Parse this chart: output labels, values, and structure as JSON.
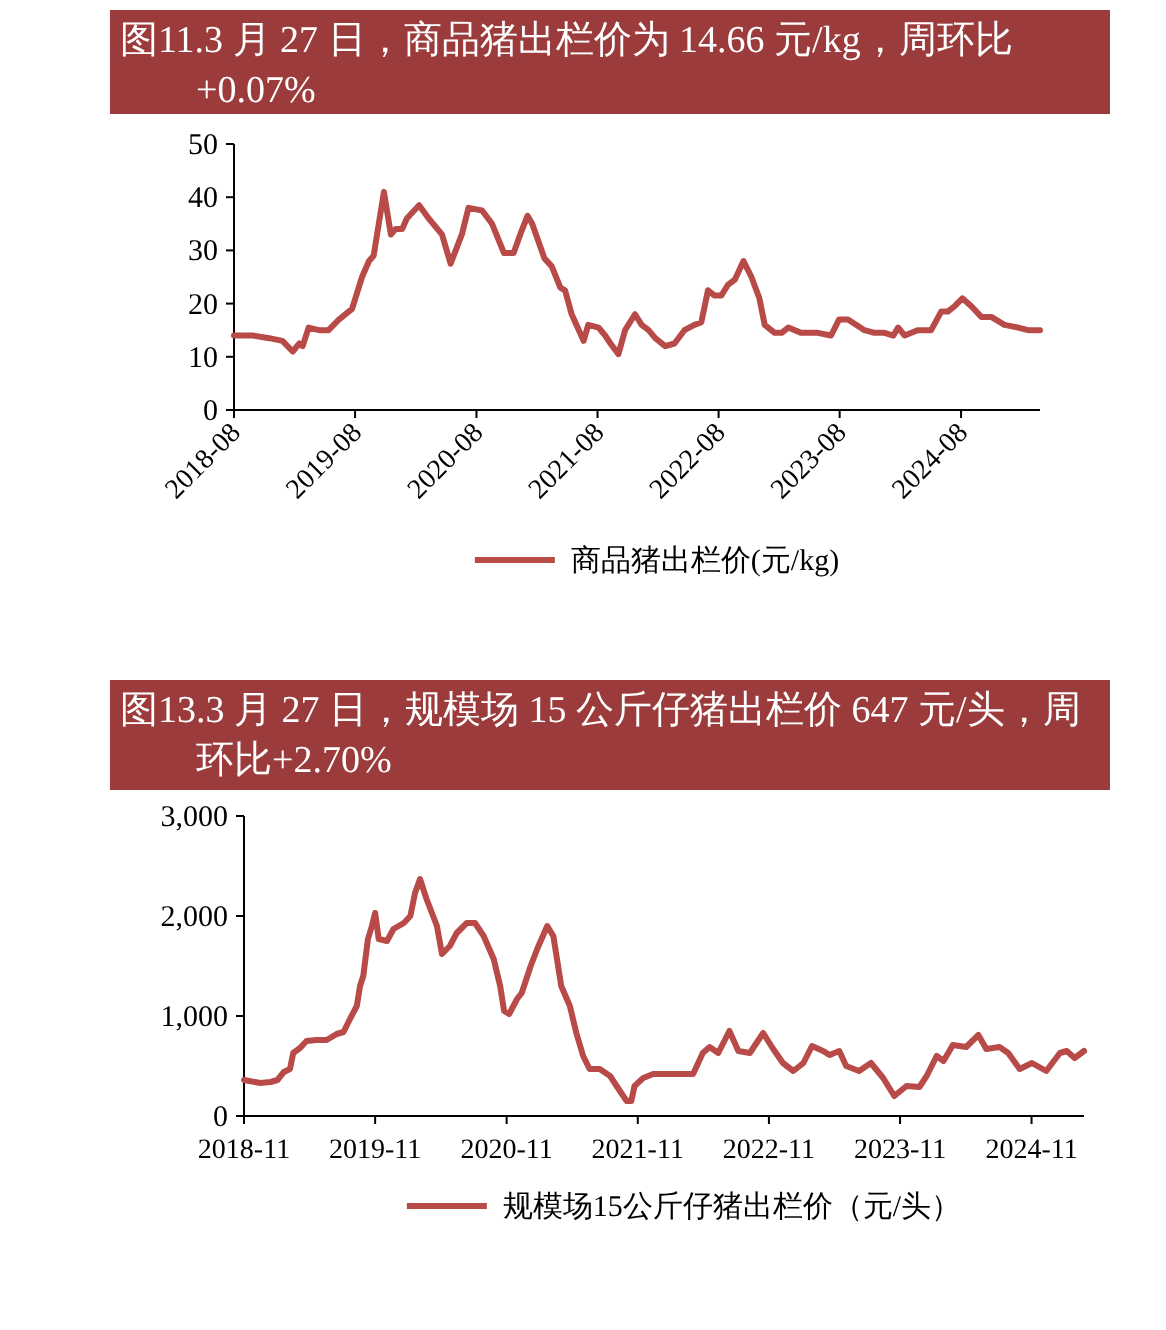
{
  "chart_data": [
    {
      "type": "line",
      "title": "图11.3 月 27 日，商品猪出栏价为 14.66 元/kg，周环比+0.07%",
      "legend": "bottom",
      "grid": false,
      "marker": "none",
      "line_style": "solid",
      "xlim": [
        "2018-08-01",
        "2025-03-27"
      ],
      "xticks": [
        "2018-08",
        "2019-08",
        "2020-08",
        "2021-08",
        "2022-08",
        "2023-08",
        "2024-08"
      ],
      "ylim": [
        0,
        50
      ],
      "yticks": [
        0,
        10,
        20,
        30,
        40,
        50
      ],
      "series": [
        {
          "name": "商品猪出栏价(元/kg)",
          "color": "#b84a48",
          "x": [
            "2018-08-01",
            "2018-09-26",
            "2018-11-15",
            "2018-12-25",
            "2019-01-25",
            "2019-02-14",
            "2019-02-24",
            "2019-03-14",
            "2019-04-14",
            "2019-05-13",
            "2019-06-13",
            "2019-07-23",
            "2019-08-22",
            "2019-09-12",
            "2019-09-26",
            "2019-10-27",
            "2019-11-17",
            "2019-12-01",
            "2019-12-21",
            "2020-01-04",
            "2020-02-10",
            "2020-03-10",
            "2020-04-19",
            "2020-05-15",
            "2020-06-18",
            "2020-07-08",
            "2020-08-18",
            "2020-09-17",
            "2020-10-23",
            "2020-11-21",
            "2020-12-11",
            "2021-01-02",
            "2021-01-16",
            "2021-02-22",
            "2021-03-16",
            "2021-04-11",
            "2021-04-25",
            "2021-05-15",
            "2021-06-20",
            "2021-07-04",
            "2021-08-04",
            "2021-08-24",
            "2021-09-09",
            "2021-10-03",
            "2021-10-23",
            "2021-11-22",
            "2021-12-12",
            "2022-01-02",
            "2022-01-22",
            "2022-02-21",
            "2022-03-21",
            "2022-04-20",
            "2022-05-20",
            "2022-06-10",
            "2022-06-30",
            "2022-07-20",
            "2022-08-09",
            "2022-08-29",
            "2022-09-19",
            "2022-10-15",
            "2022-11-08",
            "2022-12-02",
            "2022-12-18",
            "2023-01-17",
            "2023-02-07",
            "2023-02-27",
            "2023-04-07",
            "2023-04-27",
            "2023-05-27",
            "2023-07-06",
            "2023-07-30",
            "2023-08-26",
            "2023-10-15",
            "2023-11-14",
            "2023-12-14",
            "2024-01-10",
            "2024-01-24",
            "2024-02-13",
            "2024-03-23",
            "2024-05-03",
            "2024-06-02",
            "2024-06-22",
            "2024-07-12",
            "2024-08-05",
            "2024-09-01",
            "2024-10-01",
            "2024-10-31",
            "2024-12-10",
            "2025-01-20",
            "2025-02-19",
            "2025-03-27"
          ],
          "values": [
            14,
            14,
            13.5,
            13,
            11,
            12.5,
            12,
            15.5,
            15,
            15,
            17,
            19,
            25,
            28,
            29,
            41,
            33,
            34,
            34,
            36,
            38.5,
            36,
            33,
            27.5,
            33,
            38,
            37.5,
            35,
            29.5,
            29.5,
            33,
            36.5,
            35,
            28.5,
            27,
            23,
            22.5,
            18,
            13,
            16,
            15.5,
            14,
            12.5,
            10.5,
            15,
            18,
            16,
            15,
            13.5,
            12,
            12.5,
            15,
            16,
            16.5,
            22.5,
            21.5,
            21.5,
            23.5,
            24.5,
            28,
            25,
            21,
            16,
            14.5,
            14.5,
            15.5,
            14.5,
            14.5,
            14.5,
            14,
            17,
            17,
            15,
            14.5,
            14.5,
            14,
            15.5,
            14,
            15,
            15,
            18.5,
            18.5,
            19.5,
            21,
            19.5,
            17.5,
            17.5,
            16,
            15.5,
            15,
            15
          ]
        }
      ]
    },
    {
      "type": "line",
      "title": "图13.3 月 27 日，规模场 15 公斤仔猪出栏价 647 元/头，周环比+2.70%",
      "legend": "bottom",
      "grid": false,
      "marker": "none",
      "line_style": "solid",
      "xlim": [
        "2018-11-01",
        "2025-03-27"
      ],
      "xticks": [
        "2018-11",
        "2019-11",
        "2020-11",
        "2021-11",
        "2022-11",
        "2023-11",
        "2024-11"
      ],
      "ylim": [
        0,
        3000
      ],
      "yticks": [
        0,
        {
          "value": 1000,
          "label": "1,000"
        },
        {
          "value": 2000,
          "label": "2,000"
        },
        {
          "value": 3000,
          "label": "3,000"
        }
      ],
      "series": [
        {
          "name": "规模场15公斤仔猪出栏价（元/头）",
          "color": "#b84a48",
          "x": [
            "2018-11-01",
            "2018-12-16",
            "2019-01-14",
            "2019-02-02",
            "2019-02-20",
            "2019-03-09",
            "2019-03-18",
            "2019-04-06",
            "2019-04-24",
            "2019-05-22",
            "2019-06-19",
            "2019-07-17",
            "2019-08-05",
            "2019-08-23",
            "2019-09-11",
            "2019-09-20",
            "2019-09-29",
            "2019-10-12",
            "2019-10-23",
            "2019-11-01",
            "2019-11-11",
            "2019-12-04",
            "2019-12-22",
            "2020-01-20",
            "2020-02-07",
            "2020-02-20",
            "2020-03-05",
            "2020-03-23",
            "2020-04-21",
            "2020-05-05",
            "2020-05-27",
            "2020-06-15",
            "2020-07-13",
            "2020-08-05",
            "2020-08-29",
            "2020-09-26",
            "2020-10-14",
            "2020-10-25",
            "2020-11-08",
            "2020-11-30",
            "2020-12-13",
            "2021-01-07",
            "2021-01-25",
            "2021-02-22",
            "2021-03-11",
            "2021-04-02",
            "2021-04-26",
            "2021-05-14",
            "2021-06-02",
            "2021-06-20",
            "2021-07-18",
            "2021-08-16",
            "2021-09-03",
            "2021-10-01",
            "2021-10-14",
            "2021-10-23",
            "2021-11-16",
            "2021-12-14",
            "2022-02-09",
            "2022-04-04",
            "2022-05-01",
            "2022-05-20",
            "2022-06-13",
            "2022-07-14",
            "2022-08-08",
            "2022-09-09",
            "2022-10-16",
            "2022-11-13",
            "2022-12-10",
            "2023-01-08",
            "2023-02-05",
            "2023-03-01",
            "2023-04-01",
            "2023-04-19",
            "2023-05-16",
            "2023-06-04",
            "2023-07-10",
            "2023-08-12",
            "2023-09-15",
            "2023-10-16",
            "2023-11-19",
            "2023-12-25",
            "2024-01-14",
            "2024-02-11",
            "2024-03-01",
            "2024-03-27",
            "2024-05-03",
            "2024-06-06",
            "2024-06-28",
            "2024-08-04",
            "2024-08-28",
            "2024-09-29",
            "2024-11-02",
            "2024-12-12",
            "2025-01-19",
            "2025-02-07",
            "2025-03-01",
            "2025-03-27"
          ],
          "values": [
            360,
            330,
            340,
            360,
            440,
            470,
            630,
            680,
            750,
            760,
            760,
            820,
            840,
            970,
            1100,
            1300,
            1400,
            1770,
            1900,
            2030,
            1770,
            1750,
            1870,
            1930,
            2000,
            2230,
            2370,
            2170,
            1900,
            1620,
            1700,
            1830,
            1930,
            1930,
            1800,
            1570,
            1300,
            1050,
            1020,
            1170,
            1230,
            1500,
            1670,
            1900,
            1800,
            1300,
            1100,
            830,
            600,
            470,
            470,
            400,
            300,
            150,
            150,
            300,
            380,
            420,
            420,
            420,
            630,
            690,
            630,
            850,
            650,
            630,
            830,
            670,
            530,
            450,
            530,
            700,
            650,
            610,
            650,
            500,
            450,
            530,
            380,
            200,
            300,
            290,
            400,
            600,
            550,
            710,
            690,
            810,
            670,
            690,
            630,
            470,
            530,
            450,
            630,
            650,
            580,
            650
          ]
        }
      ]
    }
  ]
}
